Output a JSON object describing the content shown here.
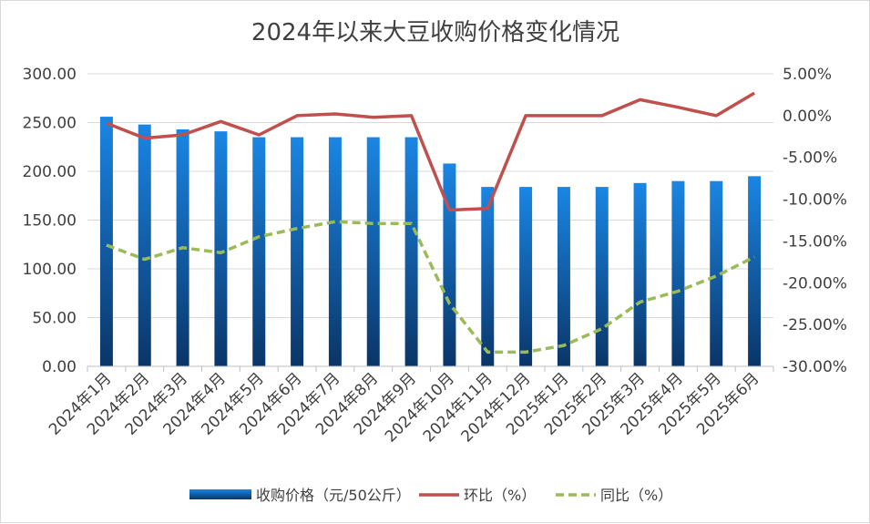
{
  "chart_data": {
    "type": "bar",
    "title": "2024年以来大豆收购价格变化情况",
    "categories": [
      "2024年1月",
      "2024年2月",
      "2024年3月",
      "2024年4月",
      "2024年5月",
      "2024年6月",
      "2024年7月",
      "2024年8月",
      "2024年9月",
      "2024年10月",
      "2024年11月",
      "2024年12月",
      "2025年1月",
      "2025年2月",
      "2025年3月",
      "2025年4月",
      "2025年5月",
      "2025年6月"
    ],
    "left_axis": {
      "ylim": [
        0,
        300
      ],
      "ticks": [
        "0.00",
        "50.00",
        "100.00",
        "150.00",
        "200.00",
        "250.00",
        "300.00"
      ]
    },
    "right_axis": {
      "ylim": [
        -30,
        5
      ],
      "ticks": [
        "-30.00%",
        "-25.00%",
        "-20.00%",
        "-15.00%",
        "-10.00%",
        "-5.00%",
        "0.00%",
        "5.00%"
      ]
    },
    "series": [
      {
        "name": "收购价格（元/50公斤）",
        "type": "bar",
        "axis": "left",
        "color": "#1a7fd6",
        "values": [
          256,
          248,
          243,
          241,
          235,
          235,
          235,
          235,
          235,
          208,
          184,
          184,
          184,
          184,
          188,
          190,
          190,
          195
        ]
      },
      {
        "name": "环比（%）",
        "type": "line",
        "axis": "right",
        "color": "#c0504d",
        "values": [
          -0.9,
          -2.7,
          -2.3,
          -0.7,
          -2.3,
          0.0,
          0.2,
          -0.2,
          0.0,
          -11.3,
          -11.1,
          0.0,
          0.0,
          0.0,
          1.9,
          1.0,
          0.0,
          2.7
        ]
      },
      {
        "name": "同比（%）",
        "type": "dashed-line",
        "axis": "right",
        "color": "#9bbb59",
        "values": [
          -15.5,
          -17.2,
          -15.8,
          -16.4,
          -14.5,
          -13.5,
          -12.7,
          -12.9,
          -12.9,
          -22.5,
          -28.3,
          -28.3,
          -27.5,
          -25.5,
          -22.3,
          -21.0,
          -19.2,
          -16.9
        ]
      }
    ]
  }
}
